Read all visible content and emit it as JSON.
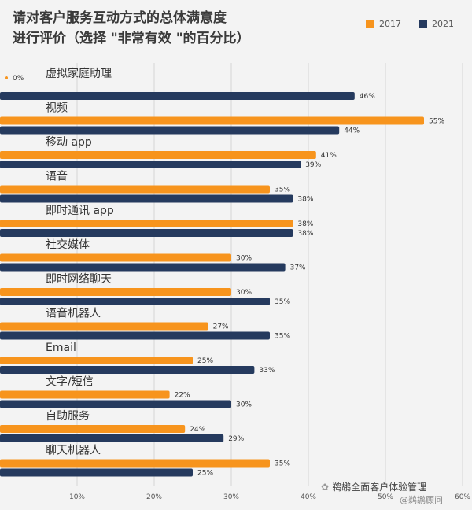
{
  "title": {
    "line1": "请对客户服务互动方式的总体满意度",
    "line2": "进行评价（选择 \"非常有效 \"的百分比）"
  },
  "colors": {
    "s2017": "#f7941d",
    "s2021": "#253a5e"
  },
  "watermark": {
    "account": "鹈鹕全面客户体验管理",
    "handle": "@鹈鹕顾问"
  },
  "chart_data": {
    "type": "bar",
    "orientation": "horizontal",
    "categories": [
      "虚拟家庭助理",
      "视频",
      "移动 app",
      "语音",
      "即时通讯 app",
      "社交媒体",
      "即时网络聊天",
      "语音机器人",
      "Email",
      "文字/短信",
      "自助服务",
      "聊天机器人"
    ],
    "series": [
      {
        "name": "2017",
        "color": "#f7941d",
        "values": [
          0,
          55,
          41,
          35,
          38,
          30,
          30,
          27,
          25,
          22,
          24,
          35
        ]
      },
      {
        "name": "2021",
        "color": "#253a5e",
        "values": [
          46,
          44,
          39,
          38,
          38,
          37,
          35,
          35,
          33,
          30,
          29,
          25
        ]
      }
    ],
    "xlim": [
      0,
      60
    ],
    "xticks": [
      "10%",
      "20%",
      "30%",
      "40%",
      "50%",
      "60%"
    ],
    "value_suffix": "%",
    "legend_position": "top-right",
    "grid": true
  }
}
